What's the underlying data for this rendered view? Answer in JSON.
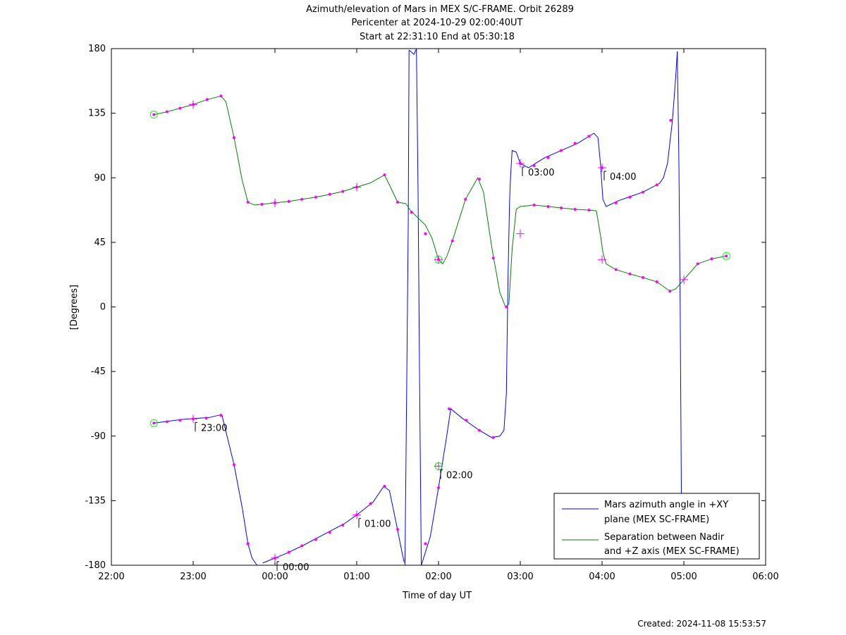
{
  "chart_data": {
    "type": "line",
    "title": "Azimuth/elevation of Mars in MEX S/C-FRAME.  Orbit 26289",
    "subtitle_1": "Pericenter at 2024-10-29 02:00:40UT",
    "subtitle_2": "Start at 22:31:10 End at 05:30:18",
    "xlabel": "Time of day UT",
    "ylabel": "[Degrees]",
    "xlim": [
      22.0,
      30.0
    ],
    "ylim": [
      -180,
      180
    ],
    "x_ticks": [
      {
        "v": 22,
        "label": "22:00"
      },
      {
        "v": 23,
        "label": "23:00"
      },
      {
        "v": 24,
        "label": "00:00"
      },
      {
        "v": 25,
        "label": "01:00"
      },
      {
        "v": 26,
        "label": "02:00"
      },
      {
        "v": 27,
        "label": "03:00"
      },
      {
        "v": 28,
        "label": "04:00"
      },
      {
        "v": 29,
        "label": "05:00"
      },
      {
        "v": 30,
        "label": "06:00"
      }
    ],
    "y_ticks": [
      {
        "v": 180,
        "label": "180"
      },
      {
        "v": 135,
        "label": "135"
      },
      {
        "v": 90,
        "label": "90"
      },
      {
        "v": 45,
        "label": "45"
      },
      {
        "v": 0,
        "label": "0"
      },
      {
        "v": -45,
        "label": "-45"
      },
      {
        "v": -90,
        "label": "-90"
      },
      {
        "v": -135,
        "label": "-135"
      },
      {
        "v": -180,
        "label": "-180"
      }
    ],
    "legend_position": "bottom-right",
    "series": [
      {
        "name": "Mars azimuth angle in +XY plane (MEX SC-FRAME)",
        "legend_line1": "Mars azimuth angle in +XY",
        "legend_line2": "plane (MEX SC-FRAME)",
        "color": "#0000ff",
        "segments": [
          [
            [
              22.52,
              -81
            ],
            [
              22.85,
              -78.5
            ],
            [
              23.2,
              -77
            ],
            [
              23.35,
              -75
            ],
            [
              23.5,
              -110
            ],
            [
              23.6,
              -140
            ],
            [
              23.67,
              -165
            ],
            [
              23.72,
              -175
            ],
            [
              23.78,
              -180
            ]
          ],
          [
            [
              23.85,
              -178.5
            ],
            [
              24.0,
              -175
            ],
            [
              24.15,
              -171.5
            ],
            [
              24.35,
              -166
            ],
            [
              24.6,
              -158.5
            ],
            [
              24.85,
              -151
            ],
            [
              25.0,
              -145
            ],
            [
              25.2,
              -136
            ],
            [
              25.33,
              -125
            ],
            [
              25.4,
              -128
            ],
            [
              25.48,
              -150
            ],
            [
              25.55,
              -170
            ],
            [
              25.58,
              -178
            ]
          ],
          [
            [
              25.59,
              -180
            ],
            [
              25.61,
              -60
            ],
            [
              25.63,
              60
            ],
            [
              25.64,
              179
            ]
          ],
          [
            [
              25.64,
              179
            ],
            [
              25.7,
              176
            ],
            [
              25.73,
              180
            ]
          ],
          [
            [
              25.73,
              180
            ],
            [
              25.75,
              80
            ],
            [
              25.77,
              -60
            ],
            [
              25.79,
              -180
            ]
          ],
          [
            [
              25.79,
              -180
            ],
            [
              25.9,
              -160
            ],
            [
              26.0,
              -126
            ],
            [
              26.1,
              -90
            ],
            [
              26.15,
              -71
            ],
            [
              26.3,
              -78
            ],
            [
              26.5,
              -86
            ],
            [
              26.65,
              -91
            ],
            [
              26.75,
              -90
            ],
            [
              26.8,
              -86
            ],
            [
              26.83,
              -60
            ],
            [
              26.84,
              -20
            ],
            [
              26.85,
              20
            ],
            [
              26.86,
              50
            ],
            [
              26.87,
              75
            ],
            [
              26.88,
              90
            ],
            [
              26.9,
              109
            ],
            [
              26.95,
              108
            ],
            [
              27.0,
              100
            ],
            [
              27.1,
              97
            ],
            [
              27.3,
              104
            ],
            [
              27.5,
              109
            ],
            [
              27.7,
              114
            ],
            [
              27.9,
              121
            ],
            [
              27.95,
              118
            ],
            [
              27.98,
              100
            ],
            [
              28.01,
              75
            ],
            [
              28.05,
              70
            ],
            [
              28.2,
              74
            ],
            [
              28.5,
              80
            ],
            [
              28.7,
              86
            ],
            [
              28.75,
              90
            ],
            [
              28.8,
              100
            ],
            [
              28.86,
              130
            ],
            [
              28.9,
              160
            ],
            [
              28.92,
              178
            ]
          ],
          [
            [
              28.92,
              178
            ],
            [
              28.94,
              100
            ],
            [
              28.955,
              0
            ],
            [
              28.97,
              -130
            ]
          ]
        ],
        "markers": [
          [
            22.52,
            -81
          ],
          [
            22.68,
            -80
          ],
          [
            22.84,
            -79
          ],
          [
            23.0,
            -78
          ],
          [
            23.16,
            -77.5
          ],
          [
            23.34,
            -75.5
          ],
          [
            23.5,
            -110
          ],
          [
            23.67,
            -165
          ],
          [
            24.0,
            -175
          ],
          [
            24.17,
            -171
          ],
          [
            24.33,
            -166.5
          ],
          [
            24.5,
            -162
          ],
          [
            24.67,
            -157
          ],
          [
            24.83,
            -152
          ],
          [
            25.0,
            -145
          ],
          [
            25.17,
            -137
          ],
          [
            25.34,
            -125
          ],
          [
            25.5,
            -155
          ],
          [
            25.84,
            -165
          ],
          [
            26.0,
            -126
          ],
          [
            26.13,
            -71
          ],
          [
            26.34,
            -79
          ],
          [
            26.5,
            -86
          ],
          [
            26.67,
            -91
          ],
          [
            27.0,
            100
          ],
          [
            27.17,
            98.5
          ],
          [
            27.34,
            104
          ],
          [
            27.5,
            109
          ],
          [
            27.67,
            114
          ],
          [
            27.84,
            119
          ],
          [
            28.0,
            97
          ],
          [
            28.17,
            72.5
          ],
          [
            28.34,
            76.5
          ],
          [
            28.5,
            80
          ],
          [
            28.67,
            85
          ],
          [
            28.84,
            130
          ]
        ],
        "crosses": [
          [
            23.0,
            -78
          ],
          [
            24.0,
            -175
          ],
          [
            25.0,
            -145
          ],
          [
            26.0,
            -111
          ],
          [
            27.0,
            100
          ],
          [
            28.0,
            97
          ]
        ],
        "circles": [
          [
            22.52,
            -81
          ],
          [
            26.0,
            -111
          ]
        ],
        "time_labels": [
          {
            "x": 23.0,
            "y": -78,
            "label": "23:00"
          },
          {
            "x": 24.0,
            "y": -175,
            "label": "00:00"
          },
          {
            "x": 25.0,
            "y": -145,
            "label": "01:00"
          },
          {
            "x": 26.0,
            "y": -111,
            "label": "02:00"
          },
          {
            "x": 27.0,
            "y": 100,
            "label": "03:00"
          },
          {
            "x": 28.0,
            "y": 97,
            "label": "04:00"
          }
        ]
      },
      {
        "name": "Separation between Nadir and +Z axis (MEX SC-FRAME)",
        "legend_line1": "Separation between Nadir",
        "legend_line2": "and +Z axis (MEX SC-FRAME)",
        "color": "#008000",
        "segments": [
          [
            [
              22.52,
              134
            ],
            [
              22.68,
              136
            ],
            [
              22.84,
              138.5
            ],
            [
              23.0,
              141
            ],
            [
              23.17,
              144.5
            ],
            [
              23.34,
              147
            ],
            [
              23.4,
              143
            ],
            [
              23.5,
              118
            ],
            [
              23.6,
              88
            ],
            [
              23.67,
              73
            ],
            [
              23.75,
              71
            ],
            [
              24.0,
              72.5
            ],
            [
              24.17,
              73.5
            ],
            [
              24.33,
              75
            ],
            [
              24.5,
              76.5
            ],
            [
              24.67,
              78.5
            ],
            [
              24.83,
              80.5
            ],
            [
              25.0,
              83.5
            ],
            [
              25.17,
              86.5
            ],
            [
              25.34,
              92
            ],
            [
              25.4,
              85
            ],
            [
              25.5,
              73
            ],
            [
              25.6,
              72
            ],
            [
              25.66,
              67
            ],
            [
              25.84,
              57
            ],
            [
              25.92,
              48
            ],
            [
              26.0,
              33
            ],
            [
              26.05,
              30
            ],
            [
              26.1,
              35
            ],
            [
              26.17,
              46
            ],
            [
              26.33,
              75
            ],
            [
              26.48,
              90
            ],
            [
              26.55,
              80
            ],
            [
              26.65,
              42
            ],
            [
              26.75,
              10
            ],
            [
              26.82,
              0
            ],
            [
              26.86,
              2
            ],
            [
              26.9,
              40
            ],
            [
              26.95,
              68
            ],
            [
              27.0,
              70
            ],
            [
              27.17,
              71
            ],
            [
              27.34,
              70
            ],
            [
              27.5,
              69
            ],
            [
              27.67,
              68
            ],
            [
              27.84,
              67.5
            ],
            [
              27.93,
              67
            ],
            [
              27.98,
              50
            ],
            [
              28.01,
              38
            ],
            [
              28.05,
              30
            ],
            [
              28.17,
              26
            ],
            [
              28.34,
              23
            ],
            [
              28.5,
              20.5
            ],
            [
              28.67,
              17.5
            ],
            [
              28.83,
              11
            ],
            [
              28.9,
              12.5
            ],
            [
              29.0,
              19
            ],
            [
              29.17,
              30
            ],
            [
              29.34,
              33.5
            ],
            [
              29.52,
              35.5
            ]
          ]
        ],
        "markers": [
          [
            22.52,
            134
          ],
          [
            22.68,
            136
          ],
          [
            22.84,
            138.5
          ],
          [
            23.0,
            141
          ],
          [
            23.17,
            144.5
          ],
          [
            23.34,
            147
          ],
          [
            23.5,
            118
          ],
          [
            23.67,
            73
          ],
          [
            23.84,
            71.5
          ],
          [
            24.0,
            72.5
          ],
          [
            24.17,
            73.5
          ],
          [
            24.33,
            75
          ],
          [
            24.5,
            76.5
          ],
          [
            24.67,
            78.5
          ],
          [
            24.83,
            80.5
          ],
          [
            25.0,
            83.5
          ],
          [
            25.34,
            92
          ],
          [
            25.5,
            73
          ],
          [
            25.67,
            66
          ],
          [
            25.84,
            51
          ],
          [
            26.0,
            33
          ],
          [
            26.17,
            46
          ],
          [
            26.33,
            75
          ],
          [
            26.5,
            89
          ],
          [
            26.67,
            34
          ],
          [
            26.83,
            0
          ],
          [
            27.17,
            71
          ],
          [
            27.34,
            70
          ],
          [
            27.5,
            69
          ],
          [
            27.67,
            68
          ],
          [
            27.84,
            67.5
          ],
          [
            28.17,
            26
          ],
          [
            28.34,
            23
          ],
          [
            28.5,
            20.5
          ],
          [
            28.67,
            17.5
          ],
          [
            28.83,
            11
          ],
          [
            29.17,
            30
          ],
          [
            29.34,
            33.5
          ],
          [
            29.52,
            35.5
          ]
        ],
        "crosses": [
          [
            23.0,
            141
          ],
          [
            24.0,
            72.5
          ],
          [
            25.0,
            83.5
          ],
          [
            26.0,
            33
          ],
          [
            27.0,
            51
          ],
          [
            28.0,
            33
          ],
          [
            29.0,
            19
          ]
        ],
        "circles": [
          [
            22.52,
            134
          ],
          [
            26.0,
            33
          ],
          [
            29.52,
            35.5
          ]
        ]
      }
    ],
    "footer": "Created: 2024-11-08 15:53:57"
  }
}
